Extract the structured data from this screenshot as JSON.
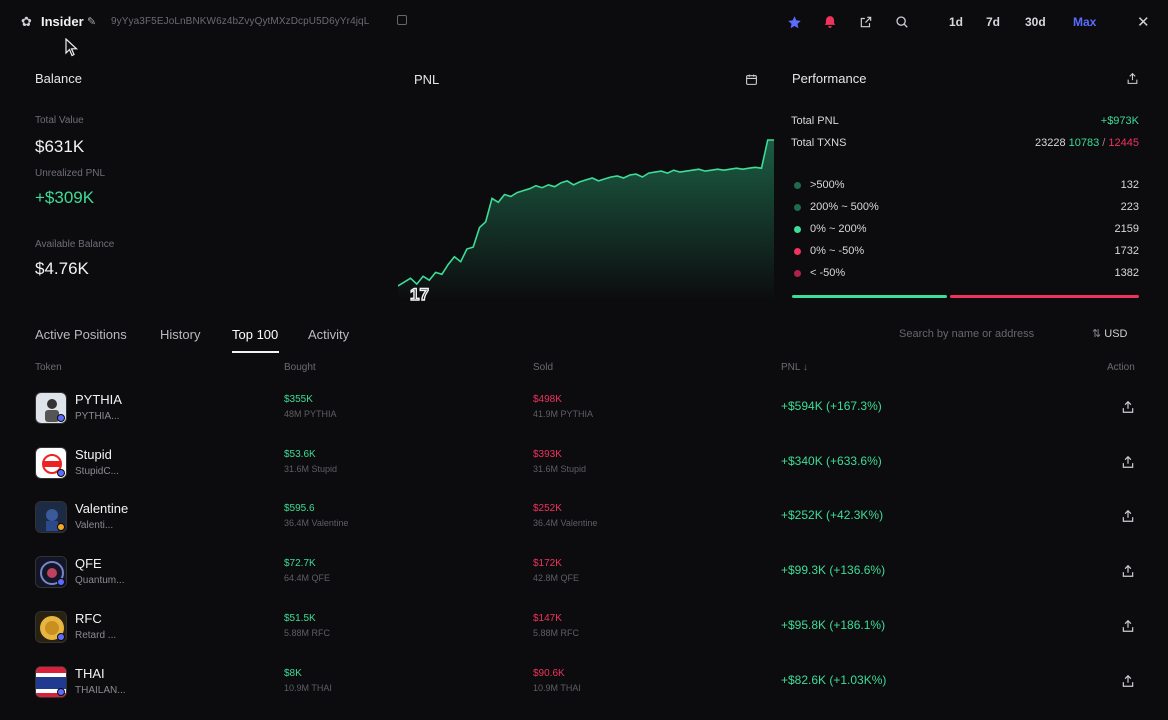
{
  "header": {
    "wallet_name": "Insider",
    "address": "9yYya3F5EJoLnBNKW6z4bZvyQytMXzDcpU5D6yYr4jqL",
    "ranges": [
      "1d",
      "7d",
      "30d",
      "Max"
    ],
    "active_range": "Max",
    "colors": {
      "accent": "#5b6cff",
      "star": "#5b6cff",
      "alert": "#f0325f"
    }
  },
  "balance": {
    "title": "Balance",
    "total_value_label": "Total Value",
    "total_value": "$631K",
    "unrealized_label": "Unrealized PNL",
    "unrealized": "+$309K",
    "available_label": "Available Balance",
    "available": "$4.76K"
  },
  "pnl": {
    "title": "PNL"
  },
  "chart_data": {
    "type": "area",
    "title": "PNL",
    "x": [
      0,
      1,
      2,
      3,
      4,
      5,
      6,
      7,
      8,
      9,
      10,
      11,
      12,
      13,
      14,
      15,
      16,
      17,
      18,
      19,
      20,
      21,
      22,
      23,
      24,
      25,
      26,
      27,
      28,
      29,
      30,
      31,
      32,
      33,
      34,
      35,
      36,
      37,
      38,
      39,
      40,
      41,
      42,
      43,
      44,
      45,
      46,
      47,
      48,
      49,
      50,
      51,
      52,
      53,
      54,
      55,
      56,
      57,
      58,
      59,
      60
    ],
    "values": [
      0,
      4,
      8,
      2,
      10,
      6,
      14,
      12,
      22,
      30,
      25,
      38,
      40,
      60,
      66,
      90,
      86,
      94,
      92,
      96,
      98,
      100,
      103,
      101,
      104,
      102,
      106,
      108,
      104,
      107,
      109,
      111,
      108,
      110,
      112,
      113,
      111,
      114,
      115,
      112,
      116,
      117,
      118,
      116,
      119,
      117,
      118,
      119,
      120,
      118,
      119,
      120,
      119,
      120,
      121,
      120,
      121,
      122,
      121,
      150,
      150
    ],
    "xlabel": "",
    "ylabel": "",
    "grid": false
  },
  "performance": {
    "title": "Performance",
    "total_pnl_label": "Total PNL",
    "total_pnl": "+$973K",
    "total_txns_label": "Total TXNS",
    "total_txns": "23228",
    "buys": "10783",
    "separator": "/",
    "sells": "12445",
    "buckets": [
      {
        "label": ">500%",
        "value": "132",
        "color": "#1e6b4c"
      },
      {
        "label": "200% ~ 500%",
        "value": "223",
        "color": "#1e6b4c"
      },
      {
        "label": "0% ~ 200%",
        "value": "2159",
        "color": "#3ddc97"
      },
      {
        "label": "0% ~ -50%",
        "value": "1732",
        "color": "#f0325f"
      },
      {
        "label": "< -50%",
        "value": "1382",
        "color": "#b0224a"
      }
    ]
  },
  "tabs": {
    "items": [
      "Active Positions",
      "History",
      "Top 100",
      "Activity"
    ],
    "active": "Top 100",
    "search_placeholder": "Search by name or address",
    "currency": "USD"
  },
  "table": {
    "headers": {
      "token": "Token",
      "bought": "Bought",
      "sold": "Sold",
      "pnl": "PNL ↓",
      "action": "Action"
    },
    "rows": [
      {
        "name": "PYTHIA",
        "sub": "PYTHIA...",
        "bought": "$355K",
        "bought_sub": "48M PYTHIA",
        "sold": "$498K",
        "sold_sub": "41.9M PYTHIA",
        "pnl": "+$594K (+167.3%)",
        "badge": "#5b6cff"
      },
      {
        "name": "Stupid",
        "sub": "StupidC...",
        "bought": "$53.6K",
        "bought_sub": "31.6M Stupid",
        "sold": "$393K",
        "sold_sub": "31.6M Stupid",
        "pnl": "+$340K (+633.6%)",
        "badge": "#5b6cff"
      },
      {
        "name": "Valentine",
        "sub": "Valenti...",
        "bought": "$595.6",
        "bought_sub": "36.4M Valentine",
        "sold": "$252K",
        "sold_sub": "36.4M Valentine",
        "pnl": "+$252K (+42.3K%)",
        "badge": "#f5a623"
      },
      {
        "name": "QFE",
        "sub": "Quantum...",
        "bought": "$72.7K",
        "bought_sub": "64.4M QFE",
        "sold": "$172K",
        "sold_sub": "42.8M QFE",
        "pnl": "+$99.3K (+136.6%)",
        "badge": "#5b6cff"
      },
      {
        "name": "RFC",
        "sub": "Retard ...",
        "bought": "$51.5K",
        "bought_sub": "5.88M RFC",
        "sold": "$147K",
        "sold_sub": "5.88M RFC",
        "pnl": "+$95.8K (+186.1%)",
        "badge": "#5b6cff"
      },
      {
        "name": "THAI",
        "sub": "THAILAN...",
        "bought": "$8K",
        "bought_sub": "10.9M THAI",
        "sold": "$90.6K",
        "sold_sub": "10.9M THAI",
        "pnl": "+$82.6K (+1.03K%)",
        "badge": "#5b6cff"
      }
    ]
  }
}
